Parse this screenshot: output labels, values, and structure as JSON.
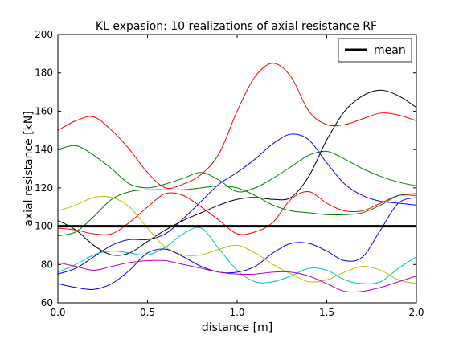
{
  "chart_data": {
    "type": "line",
    "title": "KL expasion: 10 realizations of axial resistance RF",
    "xlabel": "distance [m]",
    "ylabel": "axial resistance [kN]",
    "xlim": [
      0.0,
      2.0
    ],
    "ylim": [
      60,
      200
    ],
    "x_ticks": [
      0.0,
      0.5,
      1.0,
      1.5,
      2.0
    ],
    "x_tick_labels": [
      "0.0",
      "0.5",
      "1.0",
      "1.5",
      "2.0"
    ],
    "y_ticks": [
      60,
      80,
      100,
      120,
      140,
      160,
      180,
      200
    ],
    "y_tick_labels": [
      "60",
      "80",
      "100",
      "120",
      "140",
      "160",
      "180",
      "200"
    ],
    "grid": false,
    "legend": {
      "placement": "top-right",
      "entries": [
        "mean"
      ]
    },
    "mean": {
      "name": "mean",
      "color": "#000000",
      "x": [
        0.0,
        2.0
      ],
      "y": [
        100,
        100
      ]
    },
    "x": [
      0.0,
      0.1,
      0.2,
      0.3,
      0.4,
      0.5,
      0.6,
      0.7,
      0.8,
      0.9,
      1.0,
      1.1,
      1.2,
      1.3,
      1.4,
      1.5,
      1.6,
      1.7,
      1.8,
      1.9,
      2.0
    ],
    "series": [
      {
        "color": "#ff0000",
        "values": [
          150,
          155,
          157,
          150,
          140,
          128,
          120,
          122,
          127,
          138,
          160,
          178,
          185,
          178,
          160,
          153,
          153,
          156,
          159,
          158,
          155
        ]
      },
      {
        "color": "#008000",
        "values": [
          140,
          142,
          137,
          130,
          122,
          120,
          122,
          125,
          128,
          124,
          118,
          120,
          125,
          131,
          137,
          139,
          135,
          130,
          126,
          123,
          121
        ]
      },
      {
        "color": "#0000ff",
        "values": [
          75,
          78,
          84,
          90,
          93,
          93,
          96,
          104,
          113,
          122,
          128,
          135,
          143,
          148,
          145,
          133,
          122,
          116,
          113,
          112,
          111
        ]
      },
      {
        "color": "#000000",
        "values": [
          103,
          98,
          90,
          85,
          86,
          92,
          98,
          103,
          107,
          111,
          114,
          115,
          114,
          115,
          126,
          145,
          160,
          168,
          171,
          168,
          162
        ]
      },
      {
        "color": "#ff0000",
        "values": [
          99,
          98,
          96,
          96,
          102,
          110,
          117,
          116,
          110,
          103,
          96,
          97,
          102,
          114,
          118,
          112,
          108,
          108,
          112,
          116,
          116
        ]
      },
      {
        "color": "#008000",
        "values": [
          95,
          97,
          105,
          114,
          118,
          119,
          119,
          119,
          120,
          121,
          120,
          116,
          111,
          108,
          107,
          106,
          106,
          107,
          111,
          116,
          117
        ]
      },
      {
        "color": "#bfbf00",
        "values": [
          108,
          111,
          115,
          115,
          110,
          99,
          89,
          85,
          85,
          88,
          90,
          86,
          80,
          75,
          71,
          72,
          76,
          79,
          77,
          72,
          70
        ]
      },
      {
        "color": "#00bfbf",
        "values": [
          76,
          80,
          85,
          87,
          86,
          85,
          89,
          96,
          99,
          88,
          77,
          71,
          71,
          74,
          78,
          77,
          72,
          70,
          71,
          78,
          84
        ]
      },
      {
        "color": "#0000ff",
        "values": [
          70,
          68,
          67,
          70,
          77,
          86,
          88,
          84,
          79,
          76,
          76,
          79,
          86,
          91,
          91,
          87,
          82,
          84,
          98,
          112,
          115
        ]
      },
      {
        "color": "#bf00bf",
        "values": [
          81,
          79,
          77,
          79,
          81,
          82,
          82,
          80,
          78,
          76,
          75,
          75,
          76,
          76,
          74,
          70,
          66,
          66,
          68,
          71,
          74
        ]
      }
    ]
  }
}
